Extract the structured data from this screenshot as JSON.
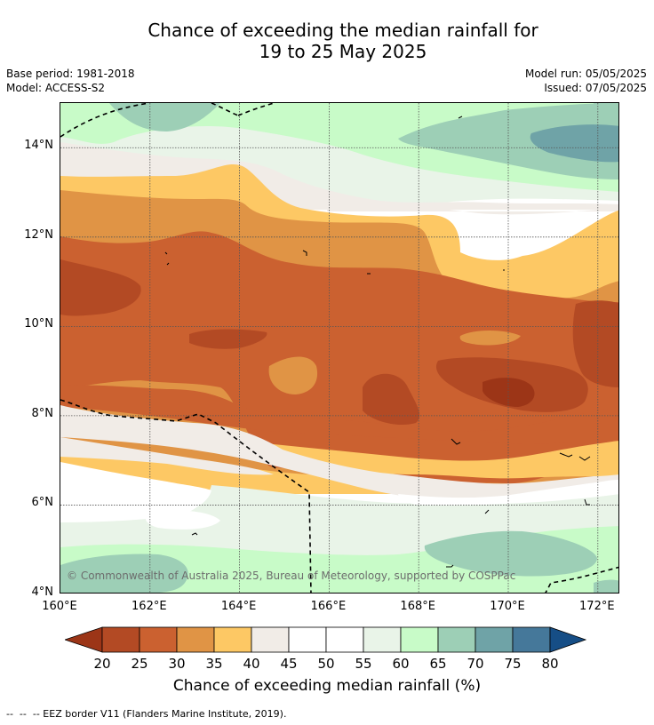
{
  "title": {
    "line1": "Chance of exceeding the median rainfall for",
    "line2": "19 to 25 May 2025"
  },
  "meta": {
    "base_period": "Base period: 1981-2018",
    "model": "Model: ACCESS-S2",
    "model_run": "Model run: 05/05/2025",
    "issued": "Issued: 07/05/2025"
  },
  "map": {
    "lat_ticks": [
      "14°N",
      "12°N",
      "10°N",
      "8°N",
      "6°N",
      "4°N"
    ],
    "lon_ticks": [
      "160°E",
      "162°E",
      "164°E",
      "166°E",
      "168°E",
      "170°E",
      "172°E"
    ],
    "lat_values": [
      14,
      12,
      10,
      8,
      6,
      4
    ],
    "lon_values": [
      160,
      162,
      164,
      166,
      168,
      170,
      172
    ],
    "lon_range": [
      160,
      172.5
    ],
    "lat_range": [
      4,
      15
    ],
    "gridlines": true,
    "copyright": "© Commonwealth of Australia 2025, Bureau of Meteorology, supported by COSPPac"
  },
  "colorbar": {
    "levels": [
      "20",
      "25",
      "30",
      "35",
      "40",
      "45",
      "50",
      "55",
      "60",
      "65",
      "70",
      "75",
      "80"
    ],
    "colors": [
      "#9c3517",
      "#b34a24",
      "#cb6130",
      "#e09445",
      "#fdc864",
      "#f1ece7",
      "#ffffff",
      "#ffffff",
      "#e9f4e8",
      "#c8fbc8",
      "#9dcfb6",
      "#6fa3a7",
      "#45789a",
      "#164e86"
    ],
    "title": "Chance of exceeding median rainfall (%)"
  },
  "footer": "--  --  -- EEZ border V11 (Flanders Marine Institute, 2019)."
}
